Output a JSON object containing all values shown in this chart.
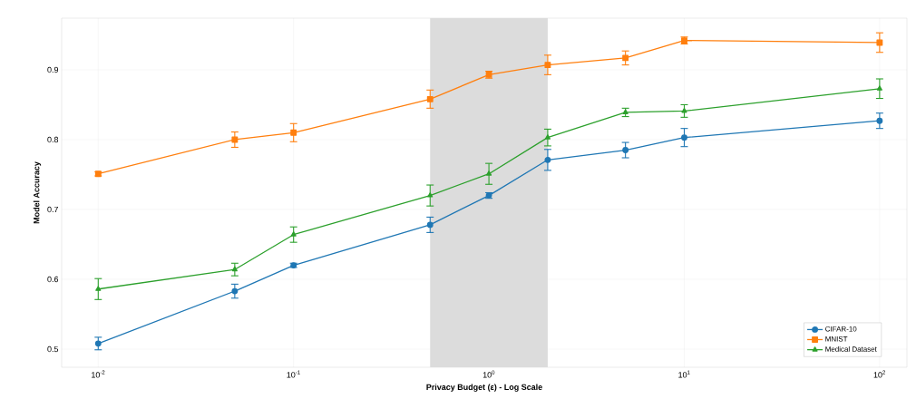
{
  "chart_data": {
    "type": "line",
    "xlabel": "Privacy Budget (ε) - Log Scale",
    "ylabel": "Model Accuracy",
    "x": [
      0.01,
      0.05,
      0.1,
      0.5,
      1,
      2,
      5,
      10,
      100
    ],
    "series": [
      {
        "name": "CIFAR-10",
        "color": "#1f77b4",
        "marker": "circle",
        "values": [
          0.508,
          0.583,
          0.62,
          0.678,
          0.72,
          0.771,
          0.785,
          0.803,
          0.827
        ],
        "errors": [
          0.009,
          0.01,
          0.003,
          0.011,
          0.004,
          0.015,
          0.011,
          0.013,
          0.011
        ]
      },
      {
        "name": "MNIST",
        "color": "#ff7f0e",
        "marker": "square",
        "values": [
          0.751,
          0.8,
          0.81,
          0.858,
          0.893,
          0.907,
          0.917,
          0.942,
          0.939
        ],
        "errors": [
          0.003,
          0.011,
          0.013,
          0.013,
          0.005,
          0.014,
          0.01,
          0.005,
          0.014
        ]
      },
      {
        "name": "Medical Dataset",
        "color": "#2ca02c",
        "marker": "triangle",
        "values": [
          0.586,
          0.614,
          0.664,
          0.72,
          0.751,
          0.803,
          0.839,
          0.841,
          0.873
        ],
        "errors": [
          0.015,
          0.009,
          0.011,
          0.015,
          0.015,
          0.012,
          0.006,
          0.009,
          0.014
        ]
      }
    ],
    "log": "x",
    "xlim": [
      0.0065,
      138
    ],
    "ylim": [
      0.474,
      0.974
    ],
    "xticks": [
      {
        "value": 0.01,
        "label": "10$^{-2}$"
      },
      {
        "value": 0.1,
        "label": "10$^{-1}$"
      },
      {
        "value": 1,
        "label": "10$^{0}$"
      },
      {
        "value": 10,
        "label": "10$^{1}$"
      },
      {
        "value": 100,
        "label": "10$^{2}$"
      }
    ],
    "yticks": [
      0.5,
      0.6,
      0.7,
      0.8,
      0.9
    ],
    "bands": [
      {
        "axis": "x",
        "from": 0.5,
        "to": 2,
        "color": "#dcdcdc"
      }
    ],
    "grid": true,
    "legend": "bottom right",
    "line_style": "solid"
  }
}
